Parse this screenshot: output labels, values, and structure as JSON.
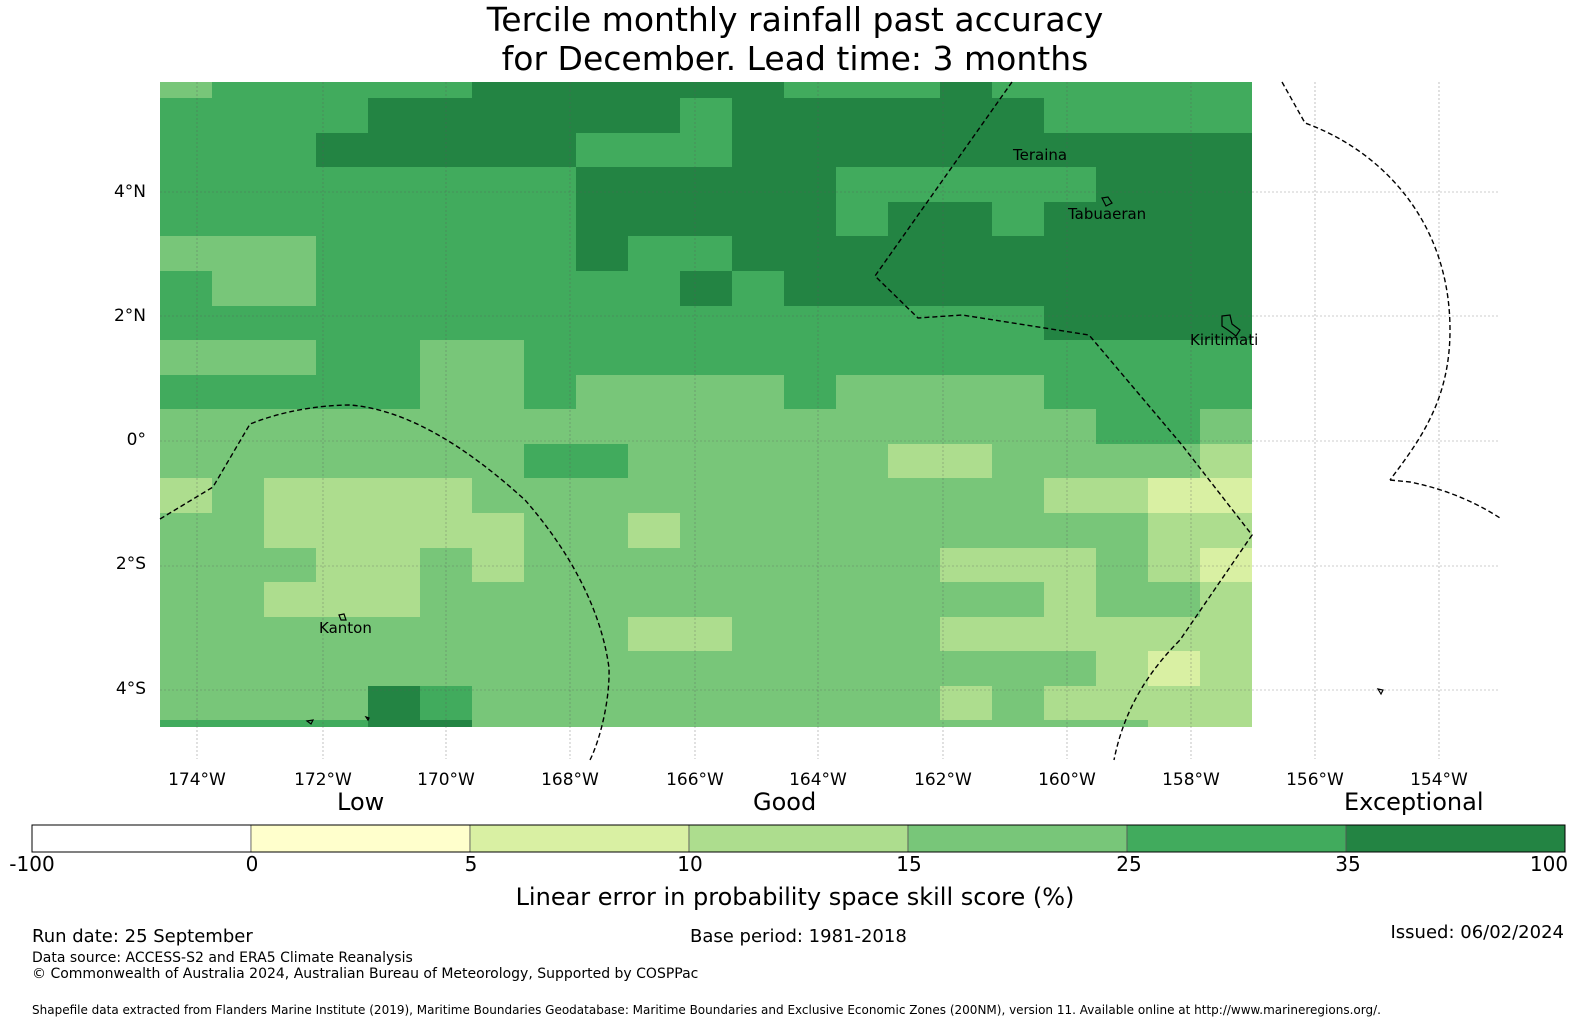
{
  "title": {
    "line1": "Tercile monthly rainfall past accuracy",
    "line2": "for December. Lead time: 3 months"
  },
  "map": {
    "lat_ticks": [
      "4°N",
      "2°N",
      "0°",
      "2°S",
      "4°S"
    ],
    "lon_ticks": [
      "174°W",
      "172°W",
      "170°W",
      "168°W",
      "166°W",
      "164°W",
      "162°W",
      "160°W",
      "158°W",
      "156°W",
      "154°W"
    ],
    "places": [
      "Teraina",
      "Tabuaeran",
      "Kiritimati",
      "Kanton"
    ],
    "grid_rows": [
      "455555666666555655555",
      "555566666656666665555",
      "555666665556666666666",
      "555555556666655555666",
      "555555556666656656666",
      "444555556556666666666",
      "544555555565666666666",
      "555555555555555556666",
      "444554455555555555555",
      "555554454444544445555",
      "444444444444444444554",
      "444444455444443344443",
      "343333444444444443322",
      "443333344344444444433",
      "444334344444444333432",
      "443334444444444443443",
      "444444444334444333333",
      "444444444444444444323",
      "444465444444444343333",
      "555566444444444444433"
    ],
    "palette": {
      "0": "#ffffff",
      "1": "#ffffcc",
      "2": "#d9f0a3",
      "3": "#addd8e",
      "4": "#78c679",
      "5": "#41ab5d",
      "6": "#238443"
    }
  },
  "legend": {
    "categories": [
      "Low",
      "Good",
      "Exceptional"
    ],
    "ticks": [
      "-100",
      "0",
      "5",
      "10",
      "15",
      "25",
      "35",
      "100"
    ],
    "colors": [
      "#ffffff",
      "#ffffcc",
      "#d9f0a3",
      "#addd8e",
      "#78c679",
      "#41ab5d",
      "#238443"
    ],
    "axis_label": "Linear error in probability space skill score (%)"
  },
  "footer": {
    "run_date": "Run date: 25 September",
    "base_period": "Base period: 1981-2018",
    "issued": "Issued: 06/02/2024",
    "data_source": "Data source: ACCESS-S2 and ERA5 Climate Reanalysis",
    "copyright": "© Commonwealth of Australia 2024, Australian Bureau of Meteorology, Supported by COSPPac",
    "shapefile": "Shapefile data extracted from Flanders Marine Institute (2019), Maritime Boundaries Geodatabase: Maritime Boundaries and Exclusive Economic Zones (200NM), version 11. Available online at http://www.marineregions.org/."
  }
}
